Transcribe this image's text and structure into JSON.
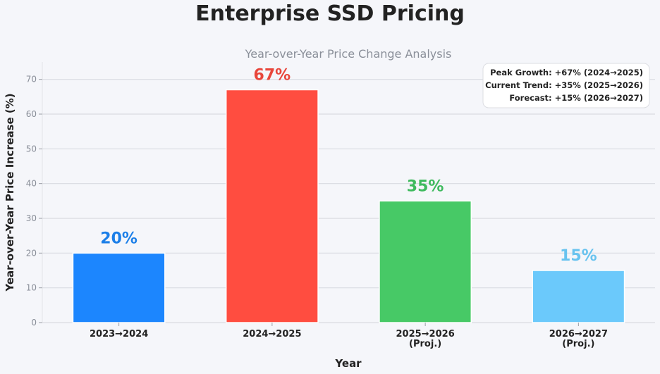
{
  "page": {
    "title": "Enterprise SSD Pricing"
  },
  "chart_data": {
    "type": "bar",
    "title": "Enterprise SSD Pricing",
    "subtitle": "Year-over-Year Price Change Analysis",
    "xlabel": "Year",
    "ylabel": "Year-over-Year Price Increase (%)",
    "ylim": [
      0,
      75
    ],
    "yticks": [
      0,
      10,
      20,
      30,
      40,
      50,
      60,
      70
    ],
    "grid": true,
    "categories": [
      [
        "2023→2024"
      ],
      [
        "2024→2025"
      ],
      [
        "2025→2026",
        "(Proj.)"
      ],
      [
        "2026→2027",
        "(Proj.)"
      ]
    ],
    "values": [
      20,
      67,
      35,
      15
    ],
    "data_labels": [
      "20%",
      "67%",
      "35%",
      "15%"
    ],
    "colors": [
      "#1c86fe",
      "#ff4d40",
      "#47c966",
      "#6bc9fb"
    ],
    "label_colors": [
      "#1c7fe8",
      "#e8463b",
      "#3fba5e",
      "#68c3ef"
    ],
    "annotation": {
      "placement": "top-right",
      "lines": [
        "Peak Growth: +67% (2024→2025)",
        "Current Trend: +35% (2025→2026)",
        "Forecast: +15% (2026→2027)"
      ]
    }
  }
}
